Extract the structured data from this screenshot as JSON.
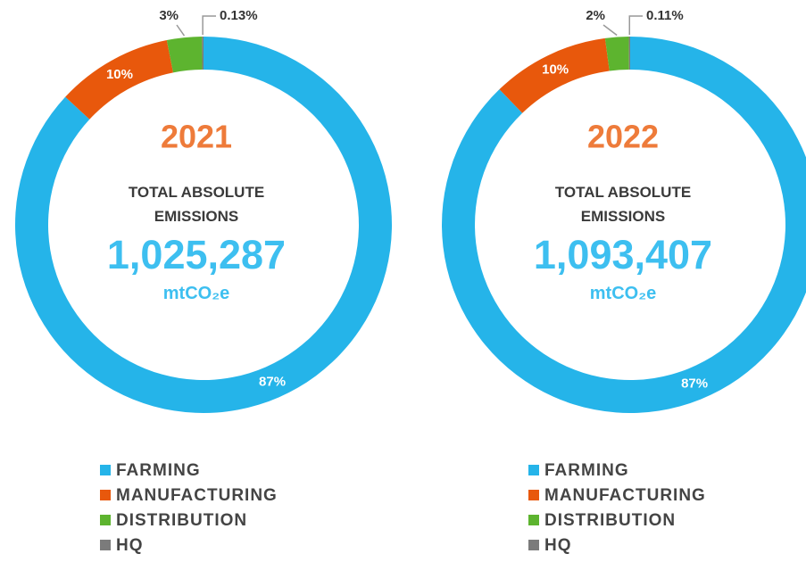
{
  "chart_data": [
    {
      "type": "donut",
      "title": "2021",
      "subtitle": "TOTAL ABSOLUTE EMISSIONS",
      "total": "1,025,287",
      "unit": "mtCO₂e",
      "categories": [
        "FARMING",
        "MANUFACTURING",
        "DISTRIBUTION",
        "HQ"
      ],
      "values": [
        87,
        10,
        3,
        0.13
      ],
      "value_labels": [
        "87%",
        "10%",
        "3%",
        "0.13%"
      ],
      "colors": [
        "#25b4e9",
        "#e8580c",
        "#5db42f",
        "#7b7b7b"
      ]
    },
    {
      "type": "donut",
      "title": "2022",
      "subtitle": "TOTAL ABSOLUTE EMISSIONS",
      "total": "1,093,407",
      "unit": "mtCO₂e",
      "categories": [
        "FARMING",
        "MANUFACTURING",
        "DISTRIBUTION",
        "HQ"
      ],
      "values": [
        87,
        10,
        2,
        0.11
      ],
      "value_labels": [
        "87%",
        "10%",
        "2%",
        "0.11%"
      ],
      "colors": [
        "#25b4e9",
        "#e8580c",
        "#5db42f",
        "#7b7b7b"
      ]
    }
  ]
}
